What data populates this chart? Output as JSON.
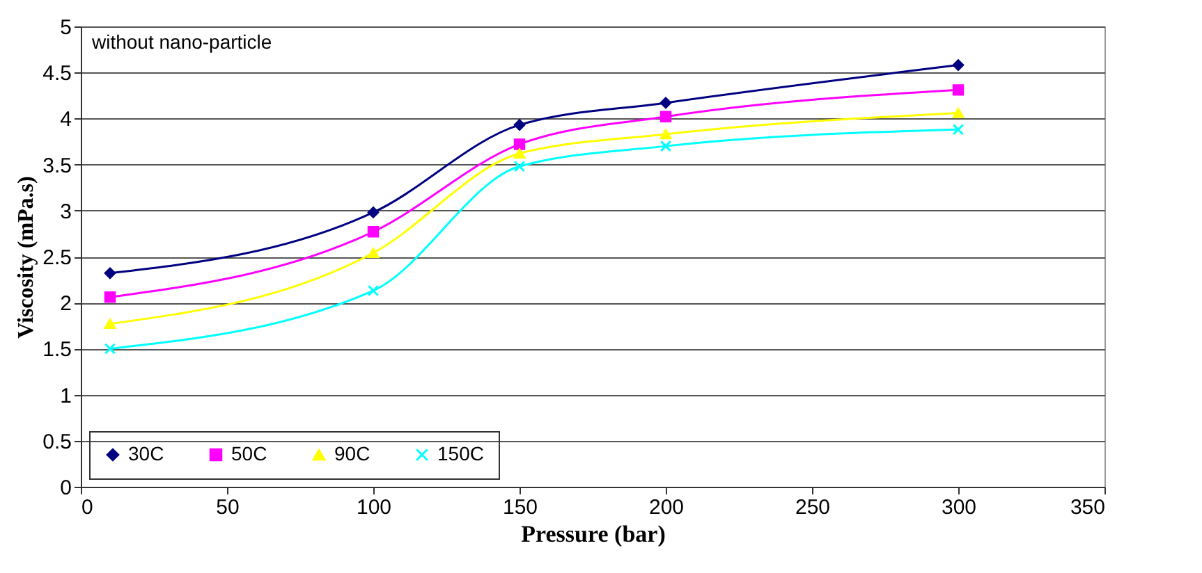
{
  "chart_data": {
    "type": "line",
    "xlabel": "Pressure (bar)",
    "ylabel": "Viscosity (mPa.s)",
    "annotations": [
      "without nano-particle"
    ],
    "x": [
      10,
      100,
      150,
      200,
      300
    ],
    "series": [
      {
        "name": "30C",
        "color": "#000080",
        "marker": "diamond",
        "values": [
          2.32,
          2.98,
          3.93,
          4.17,
          4.58
        ]
      },
      {
        "name": "50C",
        "color": "#ff00ff",
        "marker": "square",
        "values": [
          2.06,
          2.77,
          3.72,
          4.02,
          4.31
        ]
      },
      {
        "name": "90C",
        "color": "#ffff00",
        "marker": "triangle",
        "values": [
          1.77,
          2.54,
          3.62,
          3.83,
          4.06
        ]
      },
      {
        "name": "150C",
        "color": "#00ffff",
        "marker": "cross",
        "values": [
          1.5,
          2.13,
          3.48,
          3.7,
          3.88
        ]
      }
    ],
    "xlim": [
      0,
      350
    ],
    "xticks": [
      0,
      50,
      100,
      150,
      200,
      250,
      300,
      350
    ],
    "ylim": [
      0,
      5
    ],
    "yticks": [
      0,
      0.5,
      1,
      1.5,
      2,
      2.5,
      3,
      3.5,
      4,
      4.5,
      5
    ],
    "grid": "y",
    "legend": "bottom left",
    "line_style": "solid"
  }
}
